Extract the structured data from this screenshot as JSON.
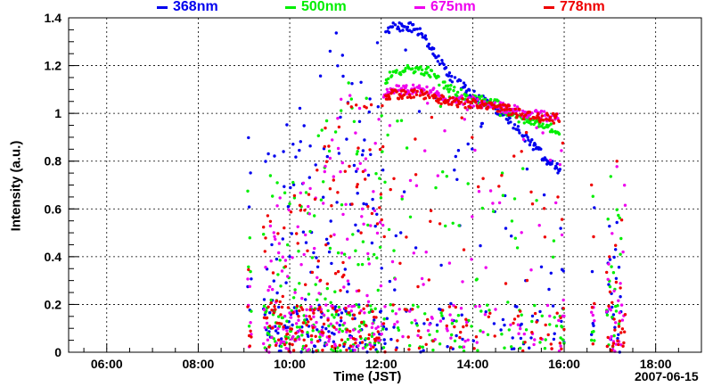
{
  "chart_data": {
    "type": "scatter",
    "xlabel": "Time (JST)",
    "ylabel": "Intensity (a.u.)",
    "date_label": "2007-06-15",
    "xlim": [
      "05:10",
      "19:00"
    ],
    "ylim": [
      0,
      1.4
    ],
    "grid": true,
    "legend_position": "top",
    "x_ticks": [
      "06:00",
      "08:00",
      "10:00",
      "12:00",
      "14:00",
      "16:00",
      "18:00"
    ],
    "y_ticks": [
      "0",
      "0.2",
      "0.4",
      "0.6",
      "0.8",
      "1",
      "1.2",
      "1.4"
    ],
    "series": [
      {
        "name": "368nm",
        "color": "#0000ee",
        "envelope": [
          [
            "09:05",
            0.9
          ],
          [
            "09:45",
            0.98
          ],
          [
            "10:30",
            1.05
          ],
          [
            "10:55",
            1.38
          ],
          [
            "11:30",
            1.2
          ],
          [
            "11:55",
            1.32
          ],
          [
            "12:15",
            1.38
          ],
          [
            "12:30",
            1.38
          ],
          [
            "12:45",
            1.38
          ],
          [
            "13:00",
            1.32
          ],
          [
            "13:30",
            1.18
          ],
          [
            "14:00",
            1.1
          ],
          [
            "14:30",
            1.04
          ],
          [
            "15:00",
            0.95
          ],
          [
            "15:30",
            0.85
          ],
          [
            "15:45",
            0.8
          ],
          [
            "16:50",
            0.7
          ]
        ]
      },
      {
        "name": "500nm",
        "color": "#00ee00",
        "envelope": [
          [
            "09:05",
            0.82
          ],
          [
            "09:45",
            0.75
          ],
          [
            "10:30",
            0.85
          ],
          [
            "11:00",
            1.18
          ],
          [
            "11:55",
            1.08
          ],
          [
            "12:10",
            1.18
          ],
          [
            "12:30",
            1.2
          ],
          [
            "13:00",
            1.2
          ],
          [
            "13:30",
            1.12
          ],
          [
            "14:00",
            1.08
          ],
          [
            "14:30",
            1.06
          ],
          [
            "15:00",
            1.0
          ],
          [
            "15:30",
            0.98
          ],
          [
            "15:50",
            0.95
          ],
          [
            "16:50",
            0.75
          ]
        ]
      },
      {
        "name": "675nm",
        "color": "#ee00ee",
        "envelope": [
          [
            "09:05",
            0.7
          ],
          [
            "09:45",
            0.65
          ],
          [
            "10:30",
            0.78
          ],
          [
            "11:00",
            1.12
          ],
          [
            "11:55",
            1.06
          ],
          [
            "12:10",
            1.12
          ],
          [
            "12:30",
            1.12
          ],
          [
            "13:00",
            1.12
          ],
          [
            "13:30",
            1.08
          ],
          [
            "14:00",
            1.07
          ],
          [
            "14:30",
            1.05
          ],
          [
            "15:00",
            1.03
          ],
          [
            "15:30",
            1.01
          ],
          [
            "15:55",
            1.0
          ],
          [
            "16:55",
            0.78
          ]
        ]
      },
      {
        "name": "778nm",
        "color": "#ee0000",
        "envelope": [
          [
            "09:05",
            0.68
          ],
          [
            "09:45",
            0.62
          ],
          [
            "10:30",
            0.75
          ],
          [
            "11:00",
            1.1
          ],
          [
            "11:55",
            1.03
          ],
          [
            "12:10",
            1.1
          ],
          [
            "12:30",
            1.1
          ],
          [
            "13:00",
            1.1
          ],
          [
            "13:30",
            1.07
          ],
          [
            "14:00",
            1.06
          ],
          [
            "14:30",
            1.05
          ],
          [
            "15:00",
            1.02
          ],
          [
            "15:30",
            1.0
          ],
          [
            "15:55",
            1.0
          ],
          [
            "16:55",
            0.8
          ]
        ]
      }
    ]
  }
}
